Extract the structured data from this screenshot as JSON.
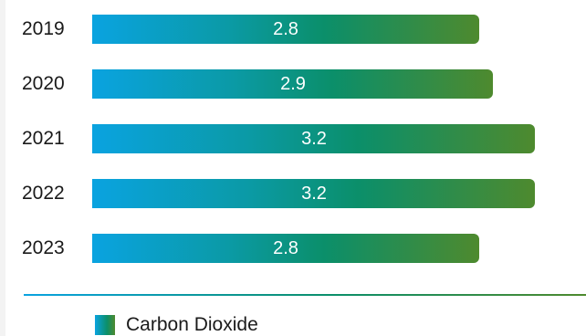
{
  "chart_data": {
    "type": "bar",
    "orientation": "horizontal",
    "categories": [
      "2019",
      "2020",
      "2021",
      "2022",
      "2023"
    ],
    "series": [
      {
        "name": "Carbon Dioxide",
        "values": [
          2.8,
          2.9,
          3.2,
          3.2,
          2.8
        ]
      }
    ],
    "data_labels": [
      "2.8",
      "2.9",
      "3.2",
      "3.2",
      "2.8"
    ],
    "legend": {
      "placement": "bottom-left",
      "entries": [
        "Carbon Dioxide"
      ]
    },
    "grid": false,
    "colors": {
      "gradient_start": "#0aa3e0",
      "gradient_mid": "#0b8f6a",
      "gradient_end": "#4e8a2e"
    }
  }
}
